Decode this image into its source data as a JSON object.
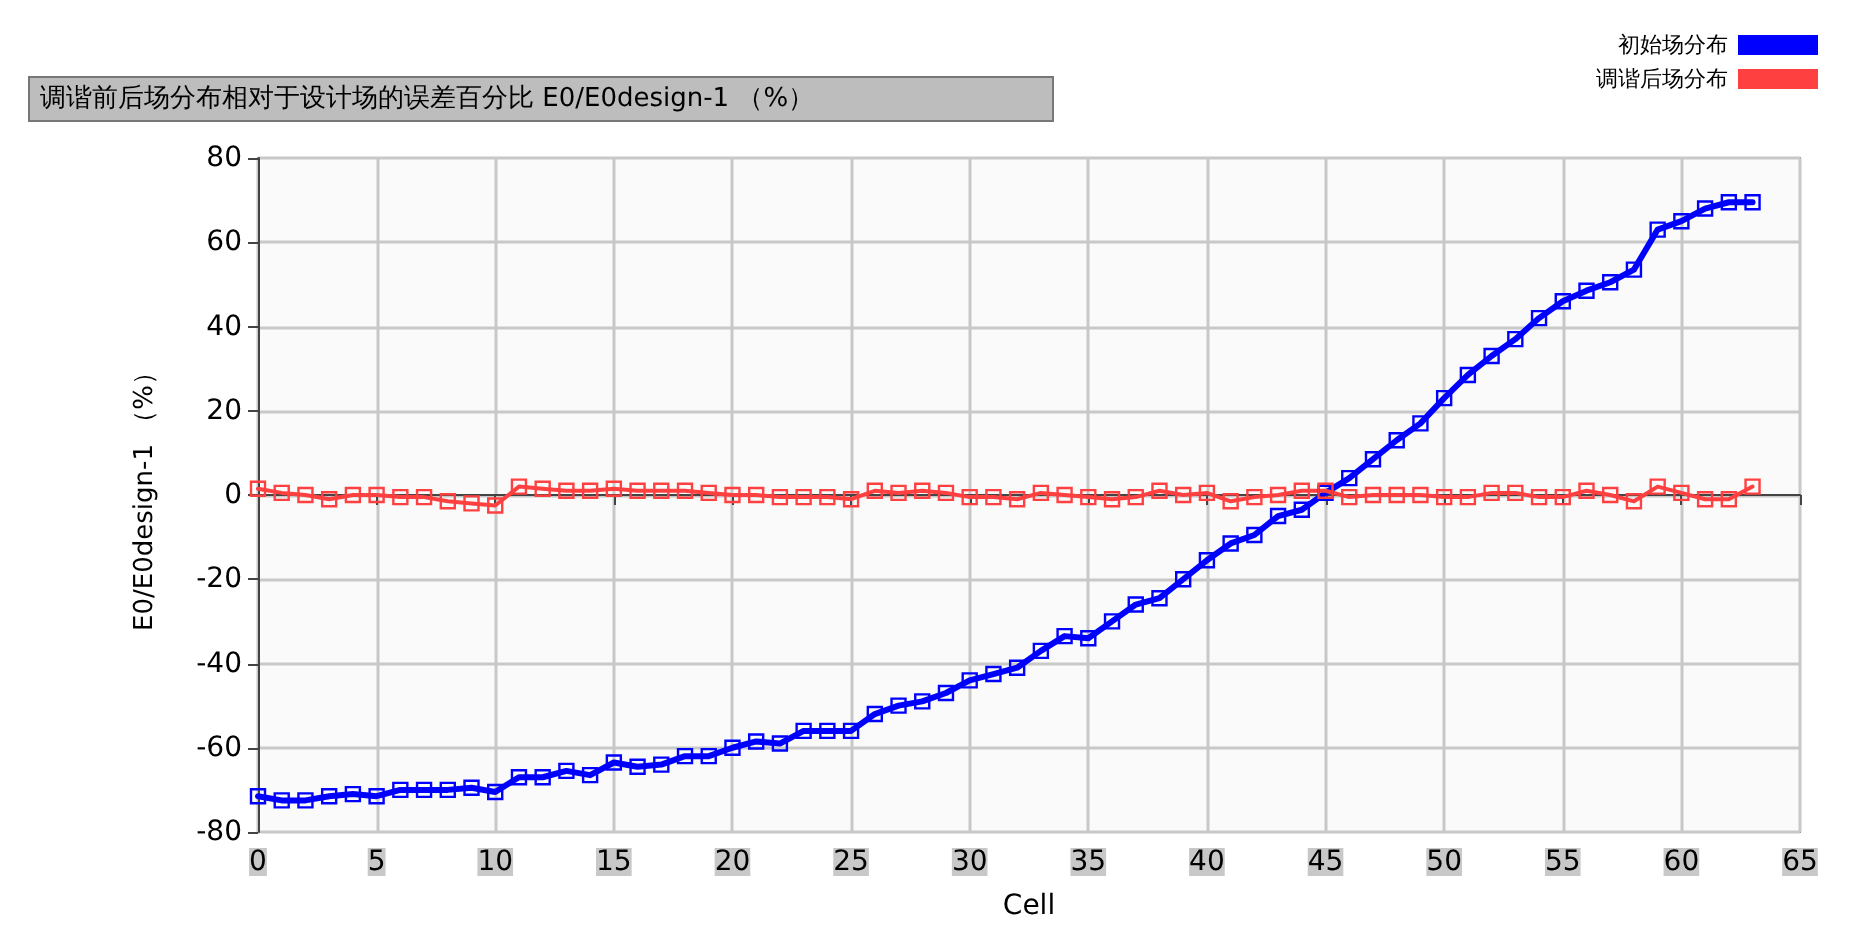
{
  "chart_data": {
    "type": "line",
    "title": "调谐前后场分布相对于设计场的误差百分比 E0/E0design-1 （%）",
    "xlabel": "Cell",
    "ylabel": "E0/E0design-1 （%）",
    "x": [
      0,
      1,
      2,
      3,
      4,
      5,
      6,
      7,
      8,
      9,
      10,
      11,
      12,
      13,
      14,
      15,
      16,
      17,
      18,
      19,
      20,
      21,
      22,
      23,
      24,
      25,
      26,
      27,
      28,
      29,
      30,
      31,
      32,
      33,
      34,
      35,
      36,
      37,
      38,
      39,
      40,
      41,
      42,
      43,
      44,
      45,
      46,
      47,
      48,
      49,
      50,
      51,
      52,
      53,
      54,
      55,
      56,
      57,
      58,
      59,
      60,
      61,
      62,
      63
    ],
    "series": [
      {
        "name": "初始场分布",
        "color": "#0000ff",
        "values": [
          -71.5,
          -72.5,
          -72.5,
          -71.5,
          -71,
          -71.5,
          -70,
          -70,
          -70,
          -69.5,
          -70.5,
          -67,
          -67,
          -65.5,
          -66.5,
          -63.5,
          -64.5,
          -64,
          -62,
          -62,
          -60,
          -58.5,
          -59,
          -56,
          -56,
          -56,
          -52,
          -50,
          -49,
          -47,
          -44,
          -42.5,
          -41,
          -37,
          -33.5,
          -34,
          -30,
          -26,
          -24.5,
          -20,
          -15.5,
          -11.5,
          -9.5,
          -5,
          -3.5,
          0.5,
          4,
          8.5,
          13,
          17,
          23,
          28.5,
          33,
          37,
          42,
          46,
          48.5,
          50.5,
          53.5,
          63,
          65,
          68,
          69.5,
          69.5
        ]
      },
      {
        "name": "调谐后场分布",
        "color": "#ff4040",
        "values": [
          1.5,
          0.5,
          0,
          -1,
          0,
          0,
          -0.5,
          -0.5,
          -1.5,
          -2,
          -2.5,
          2,
          1.5,
          1,
          1,
          1.5,
          1,
          1,
          1,
          0.5,
          0,
          0,
          -0.5,
          -0.5,
          -0.5,
          -1,
          1,
          0.5,
          1,
          0.5,
          -0.5,
          -0.5,
          -1,
          0.5,
          0,
          -0.5,
          -1,
          -0.5,
          1,
          0,
          0.5,
          -1.5,
          -0.5,
          0,
          1,
          1,
          -0.5,
          0,
          0,
          0,
          -0.5,
          -0.5,
          0.5,
          0.5,
          -0.5,
          -0.5,
          1,
          0,
          -1.5,
          2,
          0.5,
          -1,
          -1,
          2
        ]
      }
    ],
    "xlim": [
      0,
      65
    ],
    "xticks": [
      0,
      5,
      10,
      15,
      20,
      25,
      30,
      35,
      40,
      45,
      50,
      55,
      60,
      65
    ],
    "ylim": [
      -80,
      80
    ],
    "yticks": [
      -80,
      -60,
      -40,
      -20,
      0,
      20,
      40,
      60,
      80
    ],
    "grid": true,
    "legend": "top right",
    "marker": "square",
    "line_style": "solid"
  }
}
